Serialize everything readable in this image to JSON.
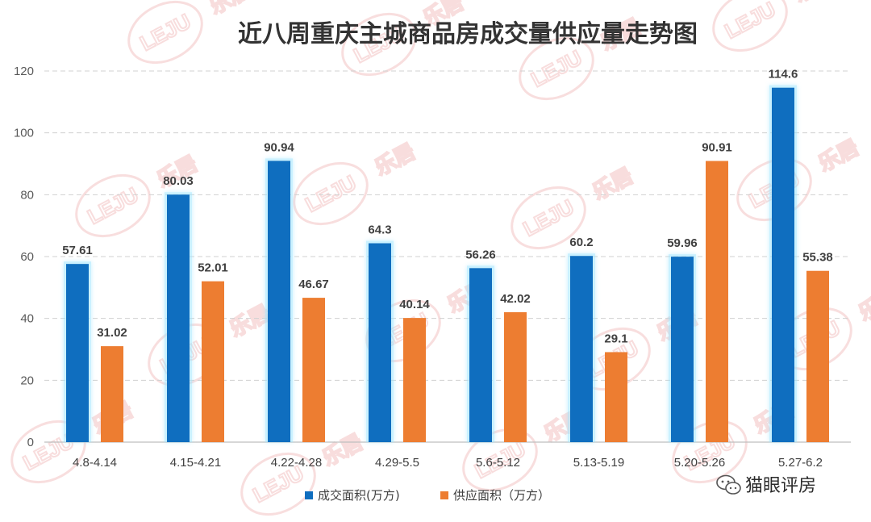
{
  "chart_data": {
    "type": "bar",
    "title": "近八周重庆主城商品房成交量供应量走势图",
    "categories": [
      "4.8-4.14",
      "4.15-4.21",
      "4.22-4.28",
      "4.29-5.5",
      "5.6-5.12",
      "5.13-5.19",
      "5.20-5.26",
      "5.27-6.2"
    ],
    "series": [
      {
        "name": "成交面积(万方)",
        "color": "#0f6ebf",
        "values": [
          57.61,
          80.03,
          90.94,
          64.3,
          56.26,
          60.2,
          59.96,
          114.6
        ],
        "labels": [
          "57.61",
          "80.03",
          "90.94",
          "64.3",
          "56.26",
          "60.2",
          "59.96",
          "114.6"
        ]
      },
      {
        "name": "供应面积（万方）",
        "color": "#ed7d31",
        "values": [
          31.02,
          52.01,
          46.67,
          40.14,
          42.02,
          29.1,
          90.91,
          55.38
        ],
        "labels": [
          "31.02",
          "52.01",
          "46.67",
          "40.14",
          "42.02",
          "29.1",
          "90.91",
          "55.38"
        ]
      }
    ],
    "ylim": [
      0,
      120
    ],
    "yticks": [
      0,
      20,
      40,
      60,
      80,
      100,
      120
    ],
    "grid": true,
    "legend_position": "bottom"
  },
  "watermark": {
    "text": "LEJU",
    "brand_cn": "乐居",
    "color": "#f3c2c2"
  },
  "brand": {
    "label": "猫眼评房",
    "icon": "wechat-icon"
  }
}
